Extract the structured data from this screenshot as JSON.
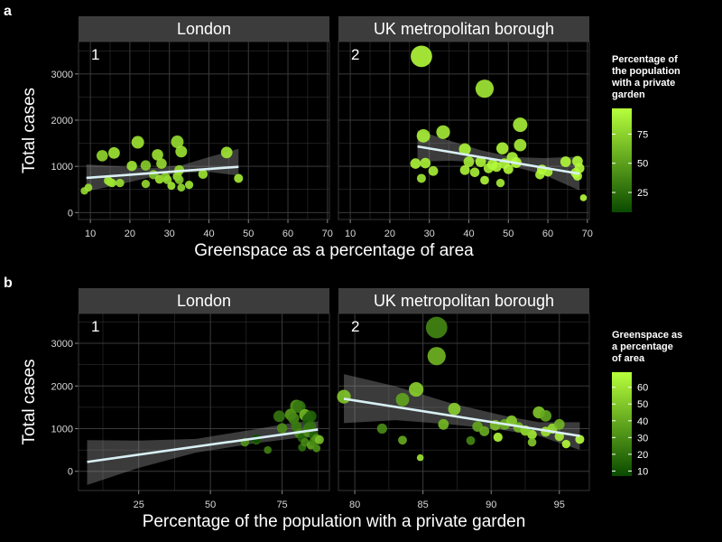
{
  "figure_labels": {
    "a": "a",
    "b": "b"
  },
  "colors": {
    "background": "#000000",
    "panel_bg": "#000000",
    "grid": "#3a3a3a",
    "strip_bg": "#3c3c3c",
    "trend_line": "#d9f0f5",
    "ribbon": "#9a9a9a",
    "color_low": "#0a4a00",
    "color_high": "#b7ff3c"
  },
  "chart_data": [
    {
      "id": "a",
      "type": "scatter",
      "facets": [
        "London",
        "UK metropolitan borough"
      ],
      "facet_numbers": [
        "1",
        "2"
      ],
      "ylabel": "Total cases",
      "xlabel": "Greenspace as a percentage of area",
      "x_ticks": [
        "10",
        "20",
        "30",
        "40",
        "50",
        "60",
        "70"
      ],
      "x_tick_values": [
        10,
        20,
        30,
        40,
        50,
        60,
        70
      ],
      "xlim": [
        7,
        70.5
      ],
      "y_ticks": [
        "0",
        "1000",
        "2000",
        "3000"
      ],
      "y_tick_values": [
        0,
        1000,
        2000,
        3000
      ],
      "ylim": [
        -150,
        3700
      ],
      "legend": {
        "title": "Percentage of the population with a private garden",
        "title_lines": [
          "Percentage of",
          "the population",
          "with a private",
          "garden"
        ],
        "tick_labels": [
          "25",
          "50",
          "75"
        ],
        "tick_values": [
          25,
          50,
          75
        ],
        "range": [
          8,
          97
        ]
      },
      "series": [
        {
          "name": "London",
          "points": [
            {
              "x": 8.5,
              "y": 470,
              "c": 80
            },
            {
              "x": 9.5,
              "y": 540,
              "c": 82
            },
            {
              "x": 13,
              "y": 1230,
              "c": 78
            },
            {
              "x": 14.5,
              "y": 690,
              "c": 85
            },
            {
              "x": 15,
              "y": 660,
              "c": 84
            },
            {
              "x": 15.5,
              "y": 640,
              "c": 83
            },
            {
              "x": 16,
              "y": 1290,
              "c": 86
            },
            {
              "x": 17.5,
              "y": 640,
              "c": 82
            },
            {
              "x": 20.5,
              "y": 1010,
              "c": 85
            },
            {
              "x": 22,
              "y": 1520,
              "c": 84
            },
            {
              "x": 24,
              "y": 1020,
              "c": 73
            },
            {
              "x": 24,
              "y": 620,
              "c": 80
            },
            {
              "x": 26,
              "y": 820,
              "c": 70
            },
            {
              "x": 27,
              "y": 1250,
              "c": 83
            },
            {
              "x": 27.5,
              "y": 720,
              "c": 86
            },
            {
              "x": 28,
              "y": 1060,
              "c": 81
            },
            {
              "x": 29,
              "y": 770,
              "c": 75
            },
            {
              "x": 29.5,
              "y": 710,
              "c": 80
            },
            {
              "x": 30.5,
              "y": 580,
              "c": 86
            },
            {
              "x": 32,
              "y": 1530,
              "c": 81
            },
            {
              "x": 32,
              "y": 780,
              "c": 84
            },
            {
              "x": 32.5,
              "y": 710,
              "c": 72
            },
            {
              "x": 32.5,
              "y": 920,
              "c": 80
            },
            {
              "x": 33,
              "y": 1320,
              "c": 83
            },
            {
              "x": 33,
              "y": 540,
              "c": 79
            },
            {
              "x": 35,
              "y": 600,
              "c": 85
            },
            {
              "x": 38.5,
              "y": 830,
              "c": 84
            },
            {
              "x": 44.5,
              "y": 1300,
              "c": 86
            },
            {
              "x": 47.5,
              "y": 740,
              "c": 88
            }
          ],
          "trend": {
            "x": [
              9,
              47.5
            ],
            "y": [
              750,
              990
            ]
          },
          "ci_upper": [
            1040,
            1000,
            960,
            1020,
            1200,
            1380
          ],
          "ci_lower": [
            460,
            600,
            760,
            860,
            880,
            800
          ],
          "ci_x": [
            9,
            17,
            25,
            33,
            40,
            47.5
          ]
        },
        {
          "name": "UK metropolitan borough",
          "points": [
            {
              "x": 28,
              "y": 3380,
              "c": 95
            },
            {
              "x": 44,
              "y": 2680,
              "c": 87
            },
            {
              "x": 53,
              "y": 1900,
              "c": 89
            },
            {
              "x": 33.5,
              "y": 1740,
              "c": 88
            },
            {
              "x": 28.5,
              "y": 1660,
              "c": 90
            },
            {
              "x": 53,
              "y": 1460,
              "c": 89
            },
            {
              "x": 39,
              "y": 1370,
              "c": 92
            },
            {
              "x": 48.5,
              "y": 1390,
              "c": 93
            },
            {
              "x": 51,
              "y": 1190,
              "c": 92
            },
            {
              "x": 26.5,
              "y": 1060,
              "c": 93
            },
            {
              "x": 29,
              "y": 1070,
              "c": 91
            },
            {
              "x": 31,
              "y": 900,
              "c": 90
            },
            {
              "x": 39,
              "y": 920,
              "c": 92
            },
            {
              "x": 40,
              "y": 1100,
              "c": 88
            },
            {
              "x": 41.5,
              "y": 870,
              "c": 91
            },
            {
              "x": 43,
              "y": 1100,
              "c": 93
            },
            {
              "x": 45,
              "y": 960,
              "c": 90
            },
            {
              "x": 46,
              "y": 1040,
              "c": 93
            },
            {
              "x": 47,
              "y": 990,
              "c": 94
            },
            {
              "x": 48,
              "y": 640,
              "c": 89
            },
            {
              "x": 49,
              "y": 1060,
              "c": 92
            },
            {
              "x": 50,
              "y": 940,
              "c": 94
            },
            {
              "x": 52,
              "y": 1080,
              "c": 95
            },
            {
              "x": 58,
              "y": 820,
              "c": 93
            },
            {
              "x": 58.5,
              "y": 930,
              "c": 96
            },
            {
              "x": 60,
              "y": 880,
              "c": 93
            },
            {
              "x": 64.5,
              "y": 1100,
              "c": 94
            },
            {
              "x": 67,
              "y": 860,
              "c": 92
            },
            {
              "x": 67.5,
              "y": 790,
              "c": 96
            },
            {
              "x": 68,
              "y": 960,
              "c": 95
            },
            {
              "x": 67.5,
              "y": 1110,
              "c": 94
            },
            {
              "x": 69,
              "y": 320,
              "c": 97
            },
            {
              "x": 28,
              "y": 740,
              "c": 86
            },
            {
              "x": 44,
              "y": 700,
              "c": 94
            }
          ],
          "trend": {
            "x": [
              27,
              68
            ],
            "y": [
              1430,
              840
            ]
          },
          "ci_upper": [
            1780,
            1560,
            1350,
            1200,
            1180,
            1210
          ],
          "ci_lower": [
            1100,
            1120,
            1100,
            1000,
            820,
            480
          ],
          "ci_x": [
            27,
            35,
            43,
            51,
            59,
            68
          ]
        }
      ]
    },
    {
      "id": "b",
      "type": "scatter",
      "facets": [
        "London",
        "UK metropolitan borough"
      ],
      "facet_numbers": [
        "1",
        "2"
      ],
      "ylabel": "Total cases",
      "xlabel": "Percentage of the population with a private garden",
      "facet_x": [
        {
          "ticks": [
            "25",
            "50",
            "75"
          ],
          "tick_values": [
            25,
            50,
            75
          ],
          "xlim": [
            4,
            91.5
          ]
        },
        {
          "ticks": [
            "80",
            "85",
            "90",
            "95"
          ],
          "tick_values": [
            80,
            85,
            90,
            95
          ],
          "xlim": [
            78.8,
            97.2
          ]
        }
      ],
      "y_ticks": [
        "0",
        "1000",
        "2000",
        "3000"
      ],
      "y_tick_values": [
        0,
        1000,
        2000,
        3000
      ],
      "ylim": [
        -450,
        3700
      ],
      "legend": {
        "title": "Greenspace as a percentage of area",
        "title_lines": [
          "Greenspace as",
          "a percentage",
          "of area"
        ],
        "tick_labels": [
          "10",
          "20",
          "30",
          "40",
          "50",
          "60"
        ],
        "tick_values": [
          10,
          20,
          30,
          40,
          50,
          60
        ],
        "range": [
          7,
          69
        ]
      },
      "series": [
        {
          "name": "London",
          "points": [
            {
              "x": 62,
              "y": 680,
              "c": 32
            },
            {
              "x": 66,
              "y": 730,
              "c": 20
            },
            {
              "x": 70,
              "y": 500,
              "c": 26
            },
            {
              "x": 74,
              "y": 1290,
              "c": 22
            },
            {
              "x": 75,
              "y": 1010,
              "c": 30
            },
            {
              "x": 78,
              "y": 1330,
              "c": 35
            },
            {
              "x": 79,
              "y": 1240,
              "c": 27
            },
            {
              "x": 80,
              "y": 1530,
              "c": 32
            },
            {
              "x": 80,
              "y": 1050,
              "c": 24
            },
            {
              "x": 81,
              "y": 1510,
              "c": 22
            },
            {
              "x": 81,
              "y": 880,
              "c": 30
            },
            {
              "x": 82,
              "y": 780,
              "c": 16
            },
            {
              "x": 82,
              "y": 560,
              "c": 20
            },
            {
              "x": 83,
              "y": 1320,
              "c": 45
            },
            {
              "x": 83,
              "y": 680,
              "c": 28
            },
            {
              "x": 84,
              "y": 1220,
              "c": 13
            },
            {
              "x": 84,
              "y": 920,
              "c": 33
            },
            {
              "x": 84,
              "y": 1000,
              "c": 24
            },
            {
              "x": 85,
              "y": 1060,
              "c": 22
            },
            {
              "x": 85,
              "y": 610,
              "c": 38
            },
            {
              "x": 86,
              "y": 840,
              "c": 15
            },
            {
              "x": 86,
              "y": 700,
              "c": 29
            },
            {
              "x": 87,
              "y": 770,
              "c": 33
            },
            {
              "x": 87,
              "y": 540,
              "c": 31
            },
            {
              "x": 88,
              "y": 740,
              "c": 47
            },
            {
              "x": 85,
              "y": 1290,
              "c": 16
            },
            {
              "x": 66,
              "y": 760,
              "c": 9
            }
          ],
          "trend": {
            "x": [
              7,
              87.5
            ],
            "y": [
              220,
              980
            ]
          },
          "ci_upper": [
            730,
            720,
            760,
            980,
            1150,
            1170
          ],
          "ci_lower": [
            -320,
            80,
            440,
            650,
            780,
            790
          ],
          "ci_x": [
            7,
            25,
            45,
            65,
            80,
            87.5
          ]
        },
        {
          "name": "UK metropolitan borough",
          "points": [
            {
              "x": 79.2,
              "y": 1750,
              "c": 50
            },
            {
              "x": 82,
              "y": 1000,
              "c": 30
            },
            {
              "x": 83.5,
              "y": 1680,
              "c": 38
            },
            {
              "x": 83.5,
              "y": 730,
              "c": 40
            },
            {
              "x": 84.5,
              "y": 1920,
              "c": 53
            },
            {
              "x": 84.8,
              "y": 320,
              "c": 60
            },
            {
              "x": 86,
              "y": 3370,
              "c": 28
            },
            {
              "x": 86,
              "y": 2700,
              "c": 44
            },
            {
              "x": 86.5,
              "y": 1100,
              "c": 45
            },
            {
              "x": 87.3,
              "y": 1460,
              "c": 53
            },
            {
              "x": 88.5,
              "y": 720,
              "c": 28
            },
            {
              "x": 89,
              "y": 1050,
              "c": 39
            },
            {
              "x": 89.5,
              "y": 940,
              "c": 41
            },
            {
              "x": 90.3,
              "y": 1080,
              "c": 47
            },
            {
              "x": 90.5,
              "y": 800,
              "c": 67
            },
            {
              "x": 91,
              "y": 1100,
              "c": 42
            },
            {
              "x": 91.5,
              "y": 1180,
              "c": 53
            },
            {
              "x": 92,
              "y": 1030,
              "c": 46
            },
            {
              "x": 92.5,
              "y": 950,
              "c": 48
            },
            {
              "x": 93,
              "y": 860,
              "c": 62
            },
            {
              "x": 93,
              "y": 680,
              "c": 50
            },
            {
              "x": 93.5,
              "y": 1380,
              "c": 50
            },
            {
              "x": 94,
              "y": 1300,
              "c": 39
            },
            {
              "x": 94,
              "y": 930,
              "c": 60
            },
            {
              "x": 94.5,
              "y": 1000,
              "c": 58
            },
            {
              "x": 95,
              "y": 820,
              "c": 64
            },
            {
              "x": 95,
              "y": 1100,
              "c": 44
            },
            {
              "x": 95.5,
              "y": 640,
              "c": 67
            },
            {
              "x": 96.5,
              "y": 750,
              "c": 69
            },
            {
              "x": 92.5,
              "y": 960,
              "c": 52
            }
          ],
          "trend": {
            "x": [
              79.2,
              96.5
            ],
            "y": [
              1700,
              830
            ]
          },
          "ci_upper": [
            2280,
            1990,
            1600,
            1300,
            1150,
            1150
          ],
          "ci_lower": [
            1130,
            1200,
            1100,
            960,
            830,
            500
          ],
          "ci_x": [
            79.2,
            83,
            87,
            91,
            93.5,
            96.5
          ]
        }
      ]
    }
  ]
}
